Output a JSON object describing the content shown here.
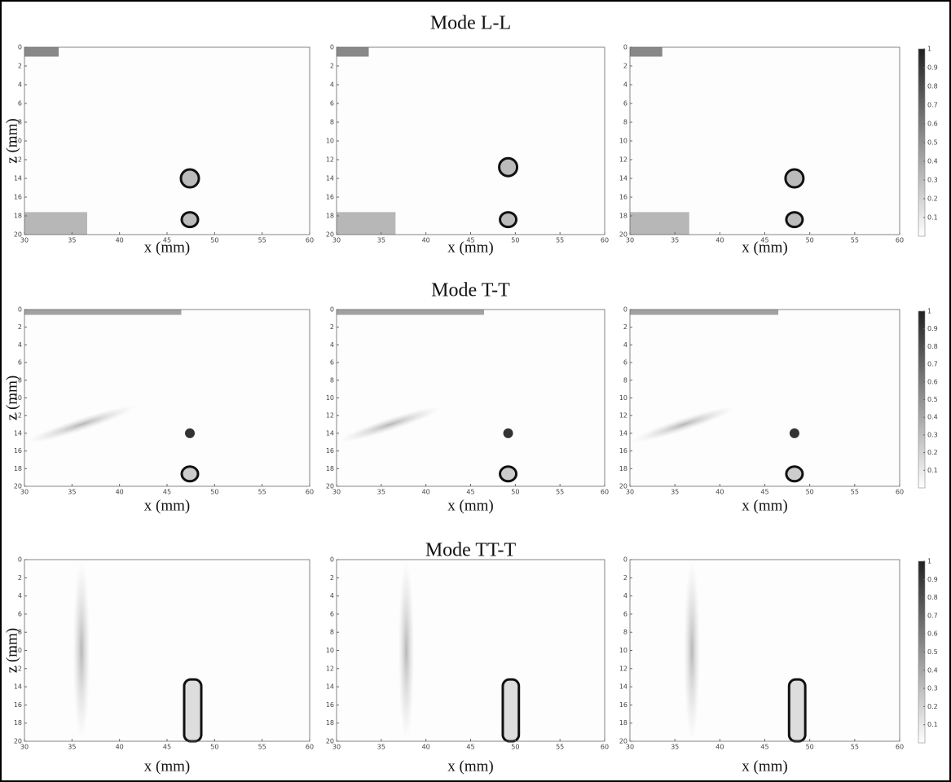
{
  "chart_data": [
    {
      "type": "heatmap",
      "xlabel": "x (mm)",
      "ylabel": "z (mm)",
      "xlim": [
        30,
        60
      ],
      "ylim": [
        0,
        20
      ],
      "y_inverted": true,
      "xticks": [
        30,
        35,
        40,
        45,
        50,
        55,
        60
      ],
      "yticks": [
        0,
        2,
        4,
        6,
        8,
        10,
        12,
        14,
        16,
        18,
        20
      ]
    },
    {
      "type": "heatmap",
      "title": "Mode L-L",
      "xlabel": "x (mm)",
      "xlim": [
        30,
        60
      ],
      "ylim": [
        0,
        20
      ],
      "y_inverted": true,
      "xticks": [
        30,
        35,
        40,
        45,
        50,
        55,
        60
      ],
      "yticks": [
        0,
        2,
        4,
        6,
        8,
        10,
        12,
        14,
        16,
        18,
        20
      ]
    },
    {
      "type": "heatmap",
      "xlabel": "x (mm)",
      "xlim": [
        30,
        60
      ],
      "ylim": [
        0,
        20
      ],
      "y_inverted": true,
      "xticks": [
        30,
        35,
        40,
        45,
        50,
        55,
        60
      ],
      "yticks": [
        0,
        2,
        4,
        6,
        8,
        10,
        12,
        14,
        16,
        18,
        20
      ],
      "colorbar": {
        "lim": [
          0,
          1
        ],
        "ticks": [
          0.1,
          0.2,
          0.3,
          0.4,
          0.5,
          0.6,
          0.7,
          0.8,
          0.9,
          1
        ]
      }
    },
    {
      "type": "heatmap",
      "xlabel": "x (mm)",
      "ylabel": "z (mm)",
      "xlim": [
        30,
        60
      ],
      "ylim": [
        0,
        20
      ],
      "y_inverted": true,
      "xticks": [
        30,
        35,
        40,
        45,
        50,
        55,
        60
      ],
      "yticks": [
        0,
        2,
        4,
        6,
        8,
        10,
        12,
        14,
        16,
        18,
        20
      ]
    },
    {
      "type": "heatmap",
      "title": "Mode T-T",
      "xlabel": "x (mm)",
      "xlim": [
        30,
        60
      ],
      "ylim": [
        0,
        20
      ],
      "y_inverted": true,
      "xticks": [
        30,
        35,
        40,
        45,
        50,
        55,
        60
      ],
      "yticks": [
        0,
        2,
        4,
        6,
        8,
        10,
        12,
        14,
        16,
        18,
        20
      ]
    },
    {
      "type": "heatmap",
      "xlabel": "x (mm)",
      "xlim": [
        30,
        60
      ],
      "ylim": [
        0,
        20
      ],
      "y_inverted": true,
      "xticks": [
        30,
        35,
        40,
        45,
        50,
        55,
        60
      ],
      "yticks": [
        0,
        2,
        4,
        6,
        8,
        10,
        12,
        14,
        16,
        18,
        20
      ],
      "colorbar": {
        "lim": [
          0,
          1
        ],
        "ticks": [
          0.1,
          0.2,
          0.3,
          0.4,
          0.5,
          0.6,
          0.7,
          0.8,
          0.9,
          1
        ]
      }
    },
    {
      "type": "heatmap",
      "xlabel": "x (mm)",
      "ylabel": "z (mm)",
      "xlim": [
        30,
        60
      ],
      "ylim": [
        0,
        20
      ],
      "y_inverted": true,
      "xticks": [
        30,
        35,
        40,
        45,
        50,
        55,
        60
      ],
      "yticks": [
        0,
        2,
        4,
        6,
        8,
        10,
        12,
        14,
        16,
        18,
        20
      ]
    },
    {
      "type": "heatmap",
      "title": "Mode TT-T",
      "xlabel": "x (mm)",
      "xlim": [
        30,
        60
      ],
      "ylim": [
        0,
        20
      ],
      "y_inverted": true,
      "xticks": [
        30,
        35,
        40,
        45,
        50,
        55,
        60
      ],
      "yticks": [
        0,
        2,
        4,
        6,
        8,
        10,
        12,
        14,
        16,
        18,
        20
      ]
    },
    {
      "type": "heatmap",
      "xlabel": "x (mm)",
      "xlim": [
        30,
        60
      ],
      "ylim": [
        0,
        20
      ],
      "y_inverted": true,
      "xticks": [
        30,
        35,
        40,
        45,
        50,
        55,
        60
      ],
      "yticks": [
        0,
        2,
        4,
        6,
        8,
        10,
        12,
        14,
        16,
        18,
        20
      ],
      "colorbar": {
        "lim": [
          0,
          1
        ],
        "ticks": [
          0.1,
          0.2,
          0.3,
          0.4,
          0.5,
          0.6,
          0.7,
          0.8,
          0.9,
          1
        ]
      }
    }
  ]
}
